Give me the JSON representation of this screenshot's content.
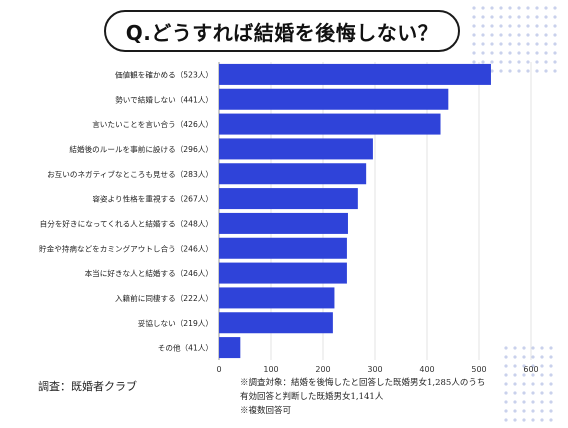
{
  "title": "Q.どうすれば結婚を後悔しない？",
  "chart_data": {
    "type": "bar",
    "orientation": "horizontal",
    "categories": [
      "価値観を確かめる（523人）",
      "勢いで結婚しない（441人）",
      "言いたいことを言い合う（426人）",
      "結婚後のルールを事前に設ける（296人）",
      "お互いのネガティブなところも見せる（283人）",
      "容姿より性格を重視する（267人）",
      "自分を好きになってくれる人と結婚する（248人）",
      "貯金や持病などをカミングアウトし合う（246人）",
      "本当に好きな人と結婚する（246人）",
      "入籍前に同棲する（222人）",
      "妥協しない（219人）",
      "その他（41人）"
    ],
    "values": [
      523,
      441,
      426,
      296,
      283,
      267,
      248,
      246,
      246,
      222,
      219,
      41
    ],
    "xlim": [
      0,
      600
    ],
    "xticks": [
      "0",
      "100",
      "200",
      "300",
      "400",
      "500",
      "600"
    ],
    "grid": true,
    "bar_color": "#2f43d9"
  },
  "footer": {
    "source": "調査：既婚者クラブ",
    "notes": [
      "※調査対象：結婚を後悔したと回答した既婚男女1,285人のうち",
      "有効回答と判断した既婚男女1,141人",
      "※複数回答可"
    ]
  }
}
